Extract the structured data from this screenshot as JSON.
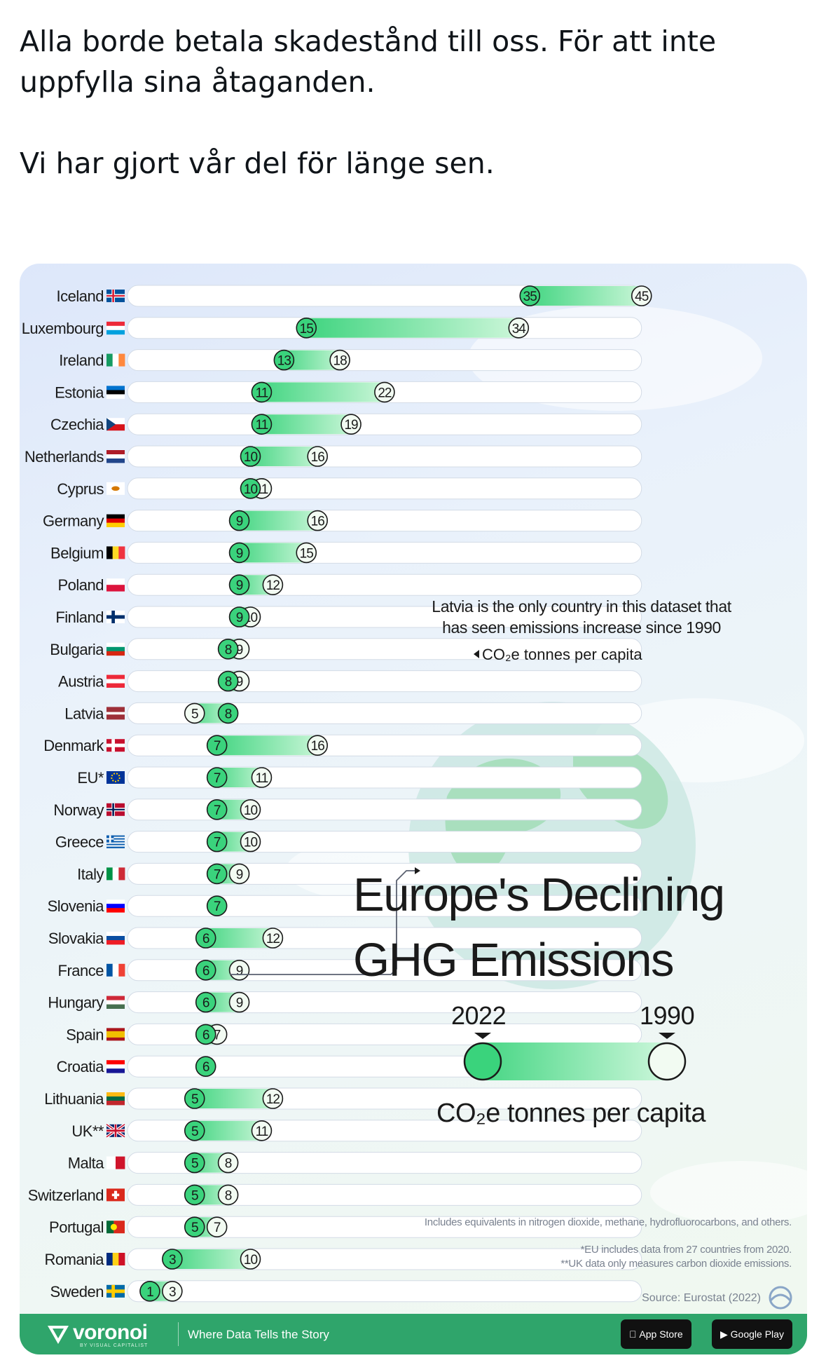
{
  "tweet": {
    "text_line1": "Alla borde betala skadestånd till oss. För att inte uppfylla sina åtaganden.",
    "text_line2": "Vi har gjort vår del för länge sen."
  },
  "infographic": {
    "title_line1": "Europe's Declining",
    "title_line2": "GHG Emissions",
    "legend": {
      "label_2022": "2022",
      "label_1990": "1990",
      "unit": "CO₂e tonnes per capita"
    },
    "annotation_unit": "CO₂e tonnes per capita",
    "callout": "Latvia is the only country in this dataset that has seen emissions increase since 1990",
    "footnote_1": "Includes equivalents in nitrogen dioxide, methane, hydrofluorocarbons, and others.",
    "footnote_2": "*EU includes data from 27 countries from 2020.",
    "footnote_3": "**UK data only measures carbon dioxide emissions.",
    "source": "Source: Eurostat (2022)",
    "brand": "voronoi",
    "brand_sub": "BY VISUAL CAPITALIST",
    "tagline": "Where Data Tells the Story",
    "app_store": "App Store",
    "google_play": "Google Play",
    "colors": {
      "bar_dark": "#3ad37c",
      "bar_light": "#cdf7dc",
      "track": "#ffffff",
      "text": "#1a1a1a",
      "brand_green": "#2fa56b"
    }
  },
  "chart_data": {
    "type": "dumbbell",
    "title": "Europe's Declining GHG Emissions",
    "unit": "CO₂e tonnes per capita",
    "series_names": [
      "2022",
      "1990"
    ],
    "categories": [
      "Iceland",
      "Luxembourg",
      "Ireland",
      "Estonia",
      "Czechia",
      "Netherlands",
      "Cyprus",
      "Germany",
      "Belgium",
      "Poland",
      "Finland",
      "Bulgaria",
      "Austria",
      "Latvia",
      "Denmark",
      "EU*",
      "Norway",
      "Greece",
      "Italy",
      "Slovenia",
      "Slovakia",
      "France",
      "Hungary",
      "Spain",
      "Croatia",
      "Lithuania",
      "UK**",
      "Malta",
      "Switzerland",
      "Portugal",
      "Romania",
      "Sweden"
    ],
    "values_2022": [
      35,
      15,
      13,
      11,
      11,
      10,
      10,
      9,
      9,
      9,
      9,
      8,
      8,
      8,
      7,
      7,
      7,
      7,
      7,
      7,
      6,
      6,
      6,
      6,
      6,
      5,
      5,
      5,
      5,
      5,
      3,
      1
    ],
    "values_1990": [
      45,
      34,
      18,
      22,
      19,
      16,
      11,
      16,
      15,
      12,
      10,
      9,
      9,
      5,
      16,
      11,
      10,
      10,
      9,
      null,
      12,
      9,
      9,
      7,
      null,
      12,
      11,
      8,
      8,
      7,
      10,
      3
    ],
    "flags": [
      {
        "type": "nordic",
        "bg": "#02529C",
        "cross": "#FFFFFF",
        "inner": "#DC1E35"
      },
      {
        "type": "h",
        "colors": [
          "#ED2939",
          "#FFFFFF",
          "#00A1DE"
        ]
      },
      {
        "type": "v",
        "colors": [
          "#169B62",
          "#FFFFFF",
          "#FF883E"
        ]
      },
      {
        "type": "h",
        "colors": [
          "#0072CE",
          "#000000",
          "#FFFFFF"
        ]
      },
      {
        "type": "czech"
      },
      {
        "type": "h",
        "colors": [
          "#AE1C28",
          "#FFFFFF",
          "#21468B"
        ]
      },
      {
        "type": "cyprus"
      },
      {
        "type": "h",
        "colors": [
          "#000000",
          "#DD0000",
          "#FFCE00"
        ]
      },
      {
        "type": "v",
        "colors": [
          "#000000",
          "#FDDA24",
          "#EF3340"
        ]
      },
      {
        "type": "h",
        "colors": [
          "#FFFFFF",
          "#DC143C"
        ]
      },
      {
        "type": "nordic",
        "bg": "#FFFFFF",
        "cross": "#002F6C"
      },
      {
        "type": "h",
        "colors": [
          "#FFFFFF",
          "#00966E",
          "#D62612"
        ]
      },
      {
        "type": "h",
        "colors": [
          "#ED2939",
          "#FFFFFF",
          "#ED2939"
        ]
      },
      {
        "type": "latvia"
      },
      {
        "type": "nordic",
        "bg": "#C8102E",
        "cross": "#FFFFFF"
      },
      {
        "type": "eu"
      },
      {
        "type": "nordic",
        "bg": "#BA0C2F",
        "cross": "#FFFFFF",
        "inner": "#00205B"
      },
      {
        "type": "greece"
      },
      {
        "type": "v",
        "colors": [
          "#009246",
          "#FFFFFF",
          "#CE2B37"
        ]
      },
      {
        "type": "h",
        "colors": [
          "#FFFFFF",
          "#0000FF",
          "#FF0000"
        ]
      },
      {
        "type": "h",
        "colors": [
          "#FFFFFF",
          "#0B4EA2",
          "#EE1C25"
        ]
      },
      {
        "type": "v",
        "colors": [
          "#0055A4",
          "#FFFFFF",
          "#EF4135"
        ]
      },
      {
        "type": "h",
        "colors": [
          "#CE2939",
          "#FFFFFF",
          "#477050"
        ]
      },
      {
        "type": "spain"
      },
      {
        "type": "h",
        "colors": [
          "#FF0000",
          "#FFFFFF",
          "#171796"
        ]
      },
      {
        "type": "h",
        "colors": [
          "#FDB913",
          "#006A44",
          "#C1272D"
        ]
      },
      {
        "type": "uk"
      },
      {
        "type": "v",
        "colors": [
          "#FFFFFF",
          "#CF142B"
        ]
      },
      {
        "type": "swiss"
      },
      {
        "type": "portugal"
      },
      {
        "type": "v",
        "colors": [
          "#002B7F",
          "#FCD116",
          "#CE1126"
        ]
      },
      {
        "type": "nordic",
        "bg": "#006AA7",
        "cross": "#FECC02"
      }
    ]
  }
}
